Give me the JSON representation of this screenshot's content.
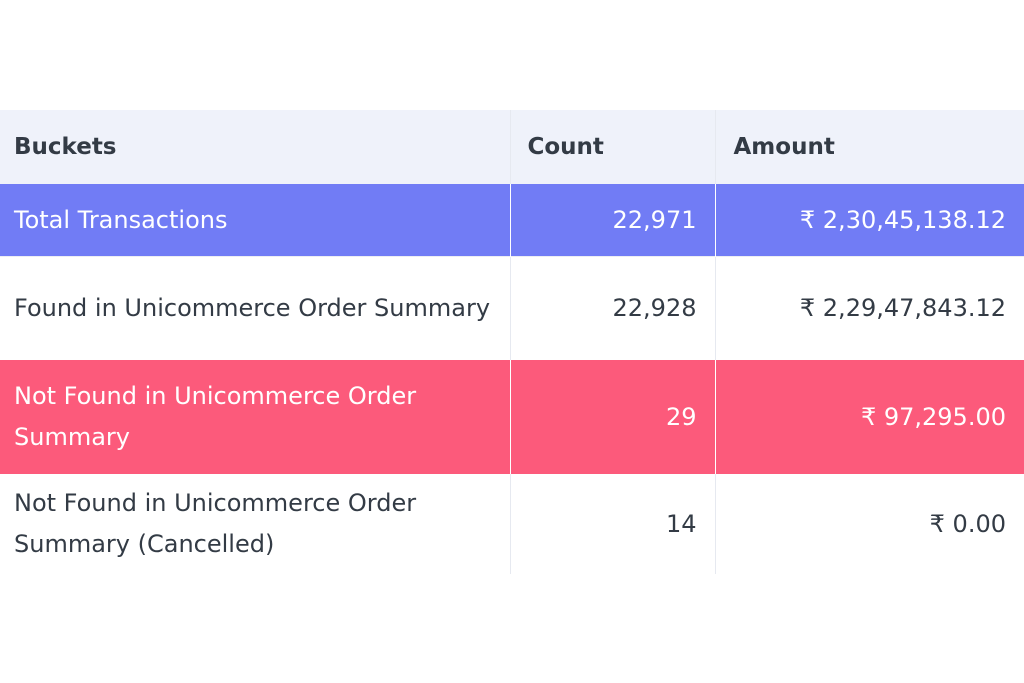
{
  "columns": {
    "buckets": "Buckets",
    "count": "Count",
    "amount": "Amount"
  },
  "rows": [
    {
      "bucket": "Total Transactions",
      "count": "22,971",
      "amount": "₹ 2,30,45,138.12",
      "highlight_color": "#717cf5"
    },
    {
      "bucket": "Found in Unicommerce Order Summary",
      "count": "22,928",
      "amount": "₹ 2,29,47,843.12",
      "highlight_color": "#ffffff"
    },
    {
      "bucket": "Not Found in Unicommerce Order Summary",
      "count": "29",
      "amount": "₹ 97,295.00",
      "highlight_color": "#fc5a7b"
    },
    {
      "bucket": "Not Found in Unicommerce Order Summary (Cancelled)",
      "count": "14",
      "amount": "₹ 0.00",
      "highlight_color": "#ffffff"
    }
  ]
}
